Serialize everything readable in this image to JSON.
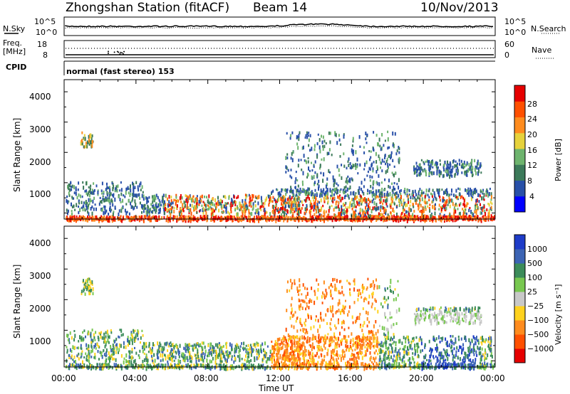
{
  "header": {
    "station": "Zhongshan Station (fitACF)",
    "beam": "Beam 14",
    "date": "10/Nov/2013"
  },
  "left_labels": {
    "nsky": "N.Sky",
    "freq_top": "Freq.",
    "freq_unit": "[MHz]",
    "cpid": "CPID"
  },
  "right_labels": {
    "nsearch": "N.Search",
    "nave": "Nave"
  },
  "cpid_text": "normal (fast stereo) 153",
  "colors": {
    "power": [
      "#0000ff",
      "#2850a8",
      "#3c7a5a",
      "#6eb46e",
      "#e6d23c",
      "#ff8c1e",
      "#ff5000",
      "#e60000"
    ],
    "velocity": [
      "#e60000",
      "#ff5000",
      "#ff8c1e",
      "#ffd21e",
      "#c8c8c8",
      "#78c850",
      "#3c8c5a",
      "#3c64b4",
      "#1e3cc8"
    ]
  },
  "chart_data": [
    {
      "type": "line",
      "name": "noise-panel",
      "left_axis": {
        "label": "N.Sky",
        "ticks": [
          "10^5",
          "10^0"
        ]
      },
      "right_axis": {
        "label": "N.Search",
        "ticks": [
          "10^5",
          "10^0"
        ]
      }
    },
    {
      "type": "scatter",
      "name": "frequency-panel",
      "left_axis": {
        "label": "Freq. [MHz]",
        "ticks": [
          "18",
          "8"
        ]
      },
      "right_axis": {
        "label": "Nave",
        "ticks": [
          "60",
          "0"
        ]
      }
    },
    {
      "type": "heatmap",
      "name": "power-panel",
      "ylabel": "Slant Range [km]",
      "yticks": [
        "4000",
        "3000",
        "2000",
        "1000"
      ],
      "colorbar": {
        "label": "Power [dB]",
        "ticks": [
          "28",
          "24",
          "20",
          "16",
          "12",
          "8",
          "4"
        ]
      }
    },
    {
      "type": "heatmap",
      "name": "velocity-panel",
      "ylabel": "Slant Range [km]",
      "yticks": [
        "4000",
        "3000",
        "2000",
        "1000"
      ],
      "colorbar": {
        "label": "Velocity [m s⁻¹]",
        "ticks": [
          "1000",
          "500",
          "100",
          "25",
          "−25",
          "−100",
          "−500",
          "−1000"
        ]
      }
    }
  ],
  "x_axis": {
    "ticks": [
      "00:00",
      "04:00",
      "08:00",
      "12:00",
      "16:00",
      "20:00",
      "00:00"
    ],
    "label": "Time UT"
  }
}
